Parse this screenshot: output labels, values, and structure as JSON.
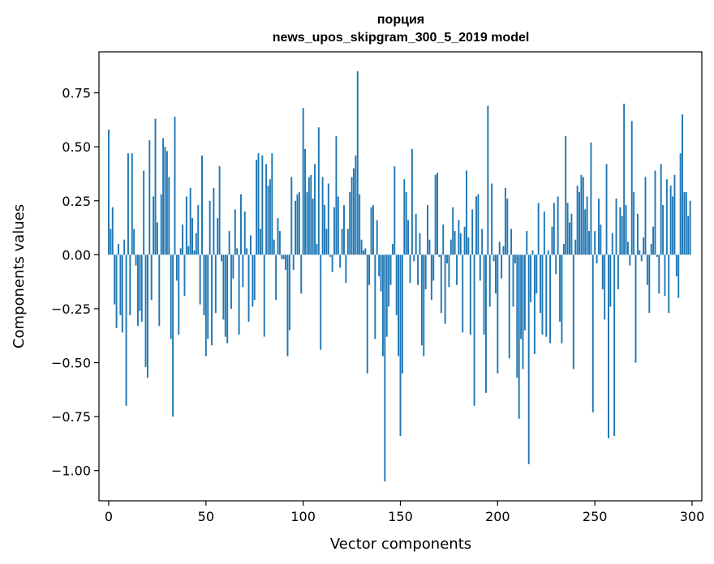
{
  "chart_data": {
    "type": "bar",
    "title_line1": "порция",
    "title_line2": "news_upos_skipgram_300_5_2019 model",
    "xlabel": "Vector components",
    "ylabel": "Components values",
    "xlim": [
      -5,
      305
    ],
    "ylim": [
      -1.14,
      0.94
    ],
    "xticks": [
      0,
      50,
      100,
      150,
      200,
      250,
      300
    ],
    "xtick_labels": [
      "0",
      "50",
      "100",
      "150",
      "200",
      "250",
      "300"
    ],
    "yticks": [
      -1.0,
      -0.75,
      -0.5,
      -0.25,
      0.0,
      0.25,
      0.5,
      0.75
    ],
    "ytick_labels": [
      "−1.00",
      "−0.75",
      "−0.50",
      "−0.25",
      "0.00",
      "0.25",
      "0.50",
      "0.75"
    ],
    "bar_color": "#1f77b4",
    "grid": false,
    "values": [
      0.58,
      0.12,
      0.22,
      -0.23,
      -0.34,
      0.05,
      -0.28,
      -0.36,
      0.07,
      -0.7,
      0.47,
      -0.28,
      0.47,
      0.12,
      -0.05,
      -0.33,
      -0.26,
      -0.31,
      0.39,
      -0.52,
      -0.57,
      0.53,
      -0.21,
      0.27,
      0.63,
      0.15,
      -0.33,
      0.28,
      0.54,
      0.5,
      0.48,
      0.36,
      -0.39,
      -0.75,
      0.64,
      -0.12,
      -0.37,
      0.03,
      0.14,
      -0.19,
      0.27,
      0.04,
      0.31,
      0.17,
      0.02,
      0.1,
      0.23,
      -0.23,
      0.46,
      -0.28,
      -0.47,
      -0.39,
      0.25,
      -0.42,
      0.31,
      -0.27,
      0.17,
      0.41,
      -0.03,
      -0.3,
      -0.38,
      -0.41,
      0.11,
      -0.25,
      -0.11,
      0.21,
      0.03,
      -0.37,
      0.28,
      -0.15,
      0.2,
      0.03,
      -0.31,
      0.09,
      -0.24,
      -0.21,
      0.44,
      0.47,
      0.12,
      0.46,
      -0.38,
      0.42,
      0.32,
      0.35,
      0.47,
      0.07,
      -0.21,
      0.17,
      0.11,
      -0.02,
      -0.02,
      -0.07,
      -0.47,
      -0.35,
      0.36,
      -0.07,
      0.25,
      0.28,
      0.29,
      -0.18,
      0.68,
      0.49,
      0.29,
      0.36,
      0.37,
      0.26,
      0.42,
      0.05,
      0.59,
      -0.44,
      0.36,
      0.23,
      0.12,
      0.33,
      -0.01,
      -0.08,
      0.22,
      0.55,
      0.27,
      -0.06,
      0.12,
      0.23,
      -0.13,
      0.12,
      0.29,
      0.36,
      0.4,
      0.46,
      0.85,
      0.28,
      0.07,
      0.02,
      0.03,
      -0.55,
      -0.14,
      0.22,
      0.23,
      -0.39,
      0.16,
      -0.1,
      -0.17,
      -0.47,
      -1.05,
      -0.38,
      -0.24,
      -0.14,
      0.05,
      0.41,
      -0.28,
      -0.47,
      -0.84,
      -0.55,
      0.35,
      0.29,
      0.16,
      -0.13,
      0.49,
      -0.03,
      0.19,
      -0.14,
      0.1,
      -0.42,
      -0.47,
      -0.16,
      0.23,
      0.07,
      -0.21,
      -0.12,
      0.37,
      0.38,
      -0.01,
      -0.27,
      0.14,
      -0.32,
      -0.04,
      -0.15,
      0.07,
      0.22,
      0.11,
      -0.14,
      0.16,
      0.1,
      -0.36,
      0.13,
      0.39,
      0.08,
      -0.37,
      0.21,
      -0.7,
      0.27,
      0.28,
      -0.12,
      0.12,
      -0.37,
      -0.64,
      0.69,
      -0.24,
      0.33,
      -0.03,
      -0.18,
      -0.55,
      0.06,
      -0.11,
      0.04,
      0.31,
      0.26,
      -0.48,
      0.12,
      -0.24,
      -0.04,
      -0.57,
      -0.76,
      -0.39,
      -0.53,
      -0.35,
      0.11,
      -0.97,
      -0.22,
      0.02,
      -0.46,
      -0.18,
      0.24,
      -0.27,
      -0.37,
      0.2,
      -0.38,
      0.02,
      -0.41,
      0.13,
      0.24,
      -0.09,
      0.27,
      -0.31,
      -0.41,
      0.05,
      0.55,
      0.24,
      0.15,
      0.19,
      -0.53,
      0.07,
      0.32,
      0.29,
      0.37,
      0.36,
      0.21,
      0.27,
      0.11,
      0.52,
      -0.73,
      0.11,
      -0.04,
      0.26,
      0.14,
      -0.16,
      -0.3,
      0.42,
      -0.85,
      -0.24,
      0.1,
      -0.84,
      0.26,
      -0.16,
      0.22,
      0.18,
      0.7,
      0.23,
      0.06,
      -0.05,
      0.62,
      0.29,
      -0.5,
      0.19,
      0.02,
      -0.03,
      0.08,
      0.36,
      -0.14,
      -0.27,
      0.05,
      0.13,
      0.39,
      -0.01,
      -0.18,
      0.42,
      0.23,
      -0.19,
      0.35,
      -0.27,
      0.32,
      0.27,
      0.37,
      -0.1,
      -0.2,
      0.47,
      0.65,
      0.29,
      0.29,
      0.18,
      0.25
    ]
  }
}
